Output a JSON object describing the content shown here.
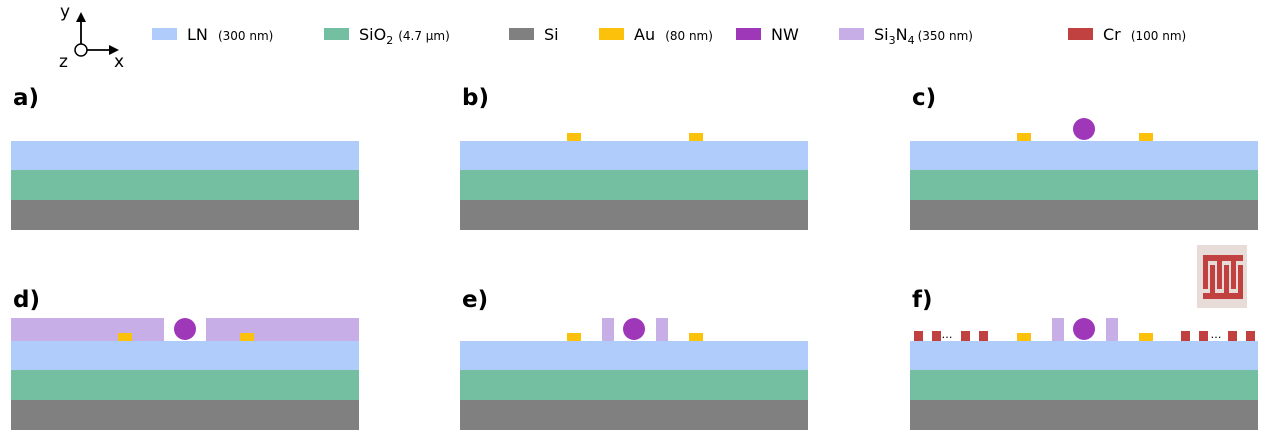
{
  "axes": {
    "y": "y",
    "x": "x",
    "z": "z"
  },
  "legend": [
    {
      "name": "LN",
      "sub": "",
      "tail": "",
      "note": "(300 nm)",
      "color": "#b0ccfb"
    },
    {
      "name": "SiO",
      "sub": "2",
      "tail": "",
      "note": "(4.7 µm)",
      "color": "#74bfa1"
    },
    {
      "name": "Si",
      "sub": "",
      "tail": "",
      "note": "",
      "color": "#808080"
    },
    {
      "name": "Au",
      "sub": "",
      "tail": "",
      "note": "(80 nm)",
      "color": "#fcc10a"
    },
    {
      "name": "NW",
      "sub": "",
      "tail": "",
      "note": "",
      "color": "#9f37b9"
    },
    {
      "name": "Si",
      "sub": "3",
      "tail": "N",
      "sub2": "4",
      "note": "(350 nm)",
      "color": "#c7aee6"
    },
    {
      "name": "Cr",
      "sub": "",
      "tail": "",
      "note": "(100 nm)",
      "color": "#c0413f"
    }
  ],
  "panels": [
    {
      "label": "a)"
    },
    {
      "label": "b)"
    },
    {
      "label": "c)"
    },
    {
      "label": "d)"
    },
    {
      "label": "e)"
    },
    {
      "label": "f)"
    }
  ],
  "ellipsis": "…",
  "colors": {
    "ln": "#b0ccfb",
    "sio2": "#74bfa1",
    "si": "#808080",
    "au": "#fcc10a",
    "nw": "#9f37b9",
    "sin": "#c7aee6",
    "cr": "#c0413f",
    "icon_bg": "#e8dcd8"
  }
}
